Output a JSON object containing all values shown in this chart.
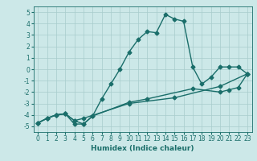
{
  "title": "",
  "xlabel": "Humidex (Indice chaleur)",
  "bg_color": "#cce8e8",
  "line_color": "#1a6e6a",
  "xlim": [
    -0.5,
    23.5
  ],
  "ylim": [
    -5.5,
    5.5
  ],
  "xticks": [
    0,
    1,
    2,
    3,
    4,
    5,
    6,
    7,
    8,
    9,
    10,
    11,
    12,
    13,
    14,
    15,
    16,
    17,
    18,
    19,
    20,
    21,
    22,
    23
  ],
  "yticks": [
    -5,
    -4,
    -3,
    -2,
    -1,
    0,
    1,
    2,
    3,
    4,
    5
  ],
  "series1_x": [
    0,
    1,
    2,
    3,
    4,
    5,
    6,
    7,
    8,
    9,
    10,
    11,
    12,
    13,
    14,
    15,
    16,
    17,
    18,
    19,
    20,
    21,
    22,
    23
  ],
  "series1_y": [
    -4.7,
    -4.3,
    -4.0,
    -3.9,
    -4.8,
    -4.8,
    -4.1,
    -2.6,
    -1.3,
    0.0,
    1.5,
    2.6,
    3.3,
    3.2,
    4.8,
    4.4,
    4.2,
    0.2,
    -1.3,
    -0.7,
    0.2,
    0.2,
    0.2,
    -0.4
  ],
  "series2_x": [
    0,
    1,
    2,
    3,
    4,
    5,
    6,
    10,
    12,
    17,
    20,
    21,
    22,
    23
  ],
  "series2_y": [
    -4.7,
    -4.3,
    -4.0,
    -3.9,
    -4.5,
    -4.8,
    -4.1,
    -2.9,
    -2.6,
    -1.7,
    -2.0,
    -1.8,
    -1.6,
    -0.4
  ],
  "series3_x": [
    0,
    1,
    2,
    3,
    4,
    5,
    10,
    15,
    20,
    23
  ],
  "series3_y": [
    -4.7,
    -4.3,
    -4.0,
    -3.9,
    -4.5,
    -4.3,
    -3.0,
    -2.5,
    -1.5,
    -0.4
  ],
  "grid_color": "#a8cccc",
  "marker": "D",
  "marker_size": 2.5,
  "linewidth": 1.0,
  "tick_fontsize": 5.5,
  "xlabel_fontsize": 6.5
}
